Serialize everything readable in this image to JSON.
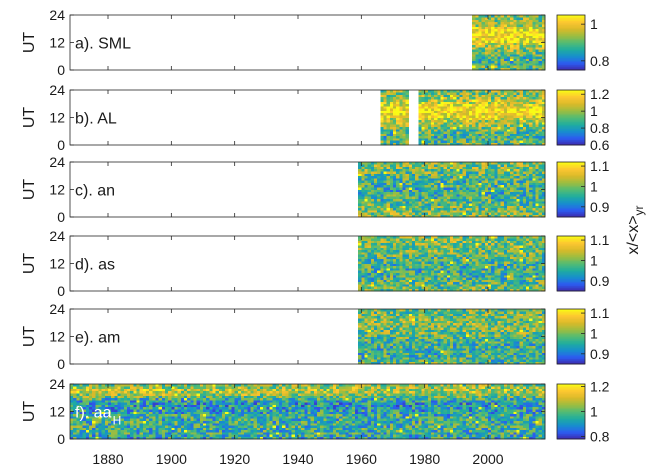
{
  "chart_data": {
    "type": "heatmap",
    "x_range": [
      1868,
      2018
    ],
    "x_ticks": [
      1880,
      1900,
      1920,
      1940,
      1960,
      1980,
      2000
    ],
    "y_range": [
      0,
      24
    ],
    "y_ticks": [
      0,
      12,
      24
    ],
    "ylabel": "UT",
    "colorbar_label": "x/<x>",
    "colorbar_label_sub": "yr",
    "colormap": [
      "#3e26a8",
      "#2c5bf0",
      "#178ece",
      "#1fac9f",
      "#52bb74",
      "#9cbd40",
      "#d9ba29",
      "#fdc631",
      "#f9fb15"
    ],
    "panels": [
      {
        "label": "a). SML",
        "label_sub": "",
        "start": 1995,
        "end": 2018,
        "gaps": [],
        "clim": [
          0.75,
          1.05
        ],
        "cticks": [
          {
            "v": 0.8,
            "t": "0.8"
          },
          {
            "v": 1.0,
            "t": "1"
          }
        ]
      },
      {
        "label": "b). AL",
        "label_sub": "",
        "start": 1966,
        "end": 2018,
        "gaps": [
          [
            1975,
            1978
          ]
        ],
        "clim": [
          0.6,
          1.25
        ],
        "cticks": [
          {
            "v": 0.6,
            "t": "0.6"
          },
          {
            "v": 0.8,
            "t": "0.8"
          },
          {
            "v": 1.0,
            "t": "1"
          },
          {
            "v": 1.2,
            "t": "1.2"
          }
        ]
      },
      {
        "label": "c). an",
        "label_sub": "",
        "start": 1959,
        "end": 2018,
        "gaps": [],
        "clim": [
          0.85,
          1.12
        ],
        "cticks": [
          {
            "v": 0.9,
            "t": "0.9"
          },
          {
            "v": 1.0,
            "t": "1"
          },
          {
            "v": 1.1,
            "t": "1.1"
          }
        ]
      },
      {
        "label": "d). as",
        "label_sub": "",
        "start": 1959,
        "end": 2018,
        "gaps": [],
        "clim": [
          0.85,
          1.12
        ],
        "cticks": [
          {
            "v": 0.9,
            "t": "0.9"
          },
          {
            "v": 1.0,
            "t": "1"
          },
          {
            "v": 1.1,
            "t": "1.1"
          }
        ]
      },
      {
        "label": "e). am",
        "label_sub": "",
        "start": 1959,
        "end": 2018,
        "gaps": [],
        "clim": [
          0.85,
          1.12
        ],
        "cticks": [
          {
            "v": 0.9,
            "t": "0.9"
          },
          {
            "v": 1.0,
            "t": "1"
          },
          {
            "v": 1.1,
            "t": "1.1"
          }
        ]
      },
      {
        "label": "f). aa",
        "label_sub": "H",
        "start": 1868,
        "end": 2018,
        "gaps": [],
        "clim": [
          0.78,
          1.22
        ],
        "cticks": [
          {
            "v": 0.8,
            "t": "0.8"
          },
          {
            "v": 1.0,
            "t": "1"
          },
          {
            "v": 1.2,
            "t": "1.2"
          }
        ]
      }
    ]
  }
}
